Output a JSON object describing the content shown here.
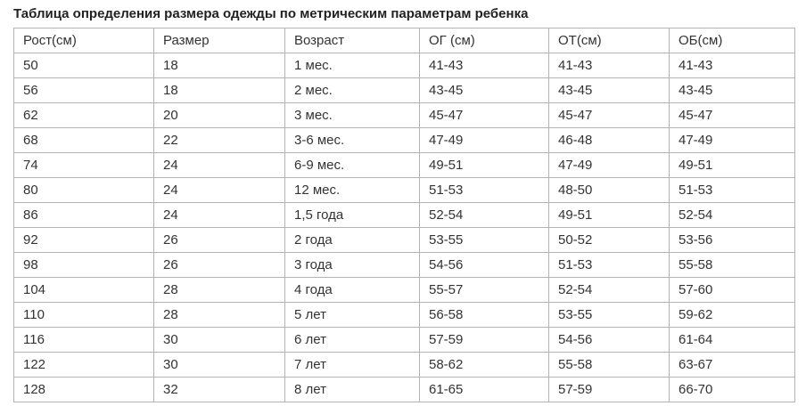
{
  "page": {
    "title": "Таблица определения размера одежды по метрическим параметрам ребенка"
  },
  "colors": {
    "background": "#ffffff",
    "title_text": "#222222",
    "cell_text": "#333333",
    "table_border": "#b3b3b3"
  },
  "table": {
    "columns": [
      "Рост(см)",
      "Размер",
      "Возраст",
      "ОГ (см)",
      "ОТ(см)",
      "ОБ(см)"
    ],
    "rows": [
      [
        "50",
        "18",
        "1 мес.",
        "41-43",
        "41-43",
        "41-43"
      ],
      [
        "56",
        "18",
        "2 мес.",
        "43-45",
        "43-45",
        "43-45"
      ],
      [
        "62",
        "20",
        "3 мес.",
        "45-47",
        "45-47",
        "45-47"
      ],
      [
        "68",
        "22",
        "3-6 мес.",
        "47-49",
        "46-48",
        "47-49"
      ],
      [
        "74",
        "24",
        "6-9 мес.",
        "49-51",
        "47-49",
        "49-51"
      ],
      [
        "80",
        "24",
        "12 мес.",
        "51-53",
        "48-50",
        "51-53"
      ],
      [
        "86",
        "24",
        "1,5 года",
        "52-54",
        "49-51",
        "52-54"
      ],
      [
        "92",
        "26",
        "2 года",
        "53-55",
        "50-52",
        "53-56"
      ],
      [
        "98",
        "26",
        "3 года",
        "54-56",
        "51-53",
        "55-58"
      ],
      [
        "104",
        "28",
        "4 года",
        "55-57",
        "52-54",
        "57-60"
      ],
      [
        "110",
        "28",
        "5 лет",
        "56-58",
        "53-55",
        "59-62"
      ],
      [
        "116",
        "30",
        "6 лет",
        "57-59",
        "54-56",
        "61-64"
      ],
      [
        "122",
        "30",
        "7 лет",
        "58-62",
        "55-58",
        "63-67"
      ],
      [
        "128",
        "32",
        "8 лет",
        "61-65",
        "57-59",
        "66-70"
      ]
    ]
  }
}
